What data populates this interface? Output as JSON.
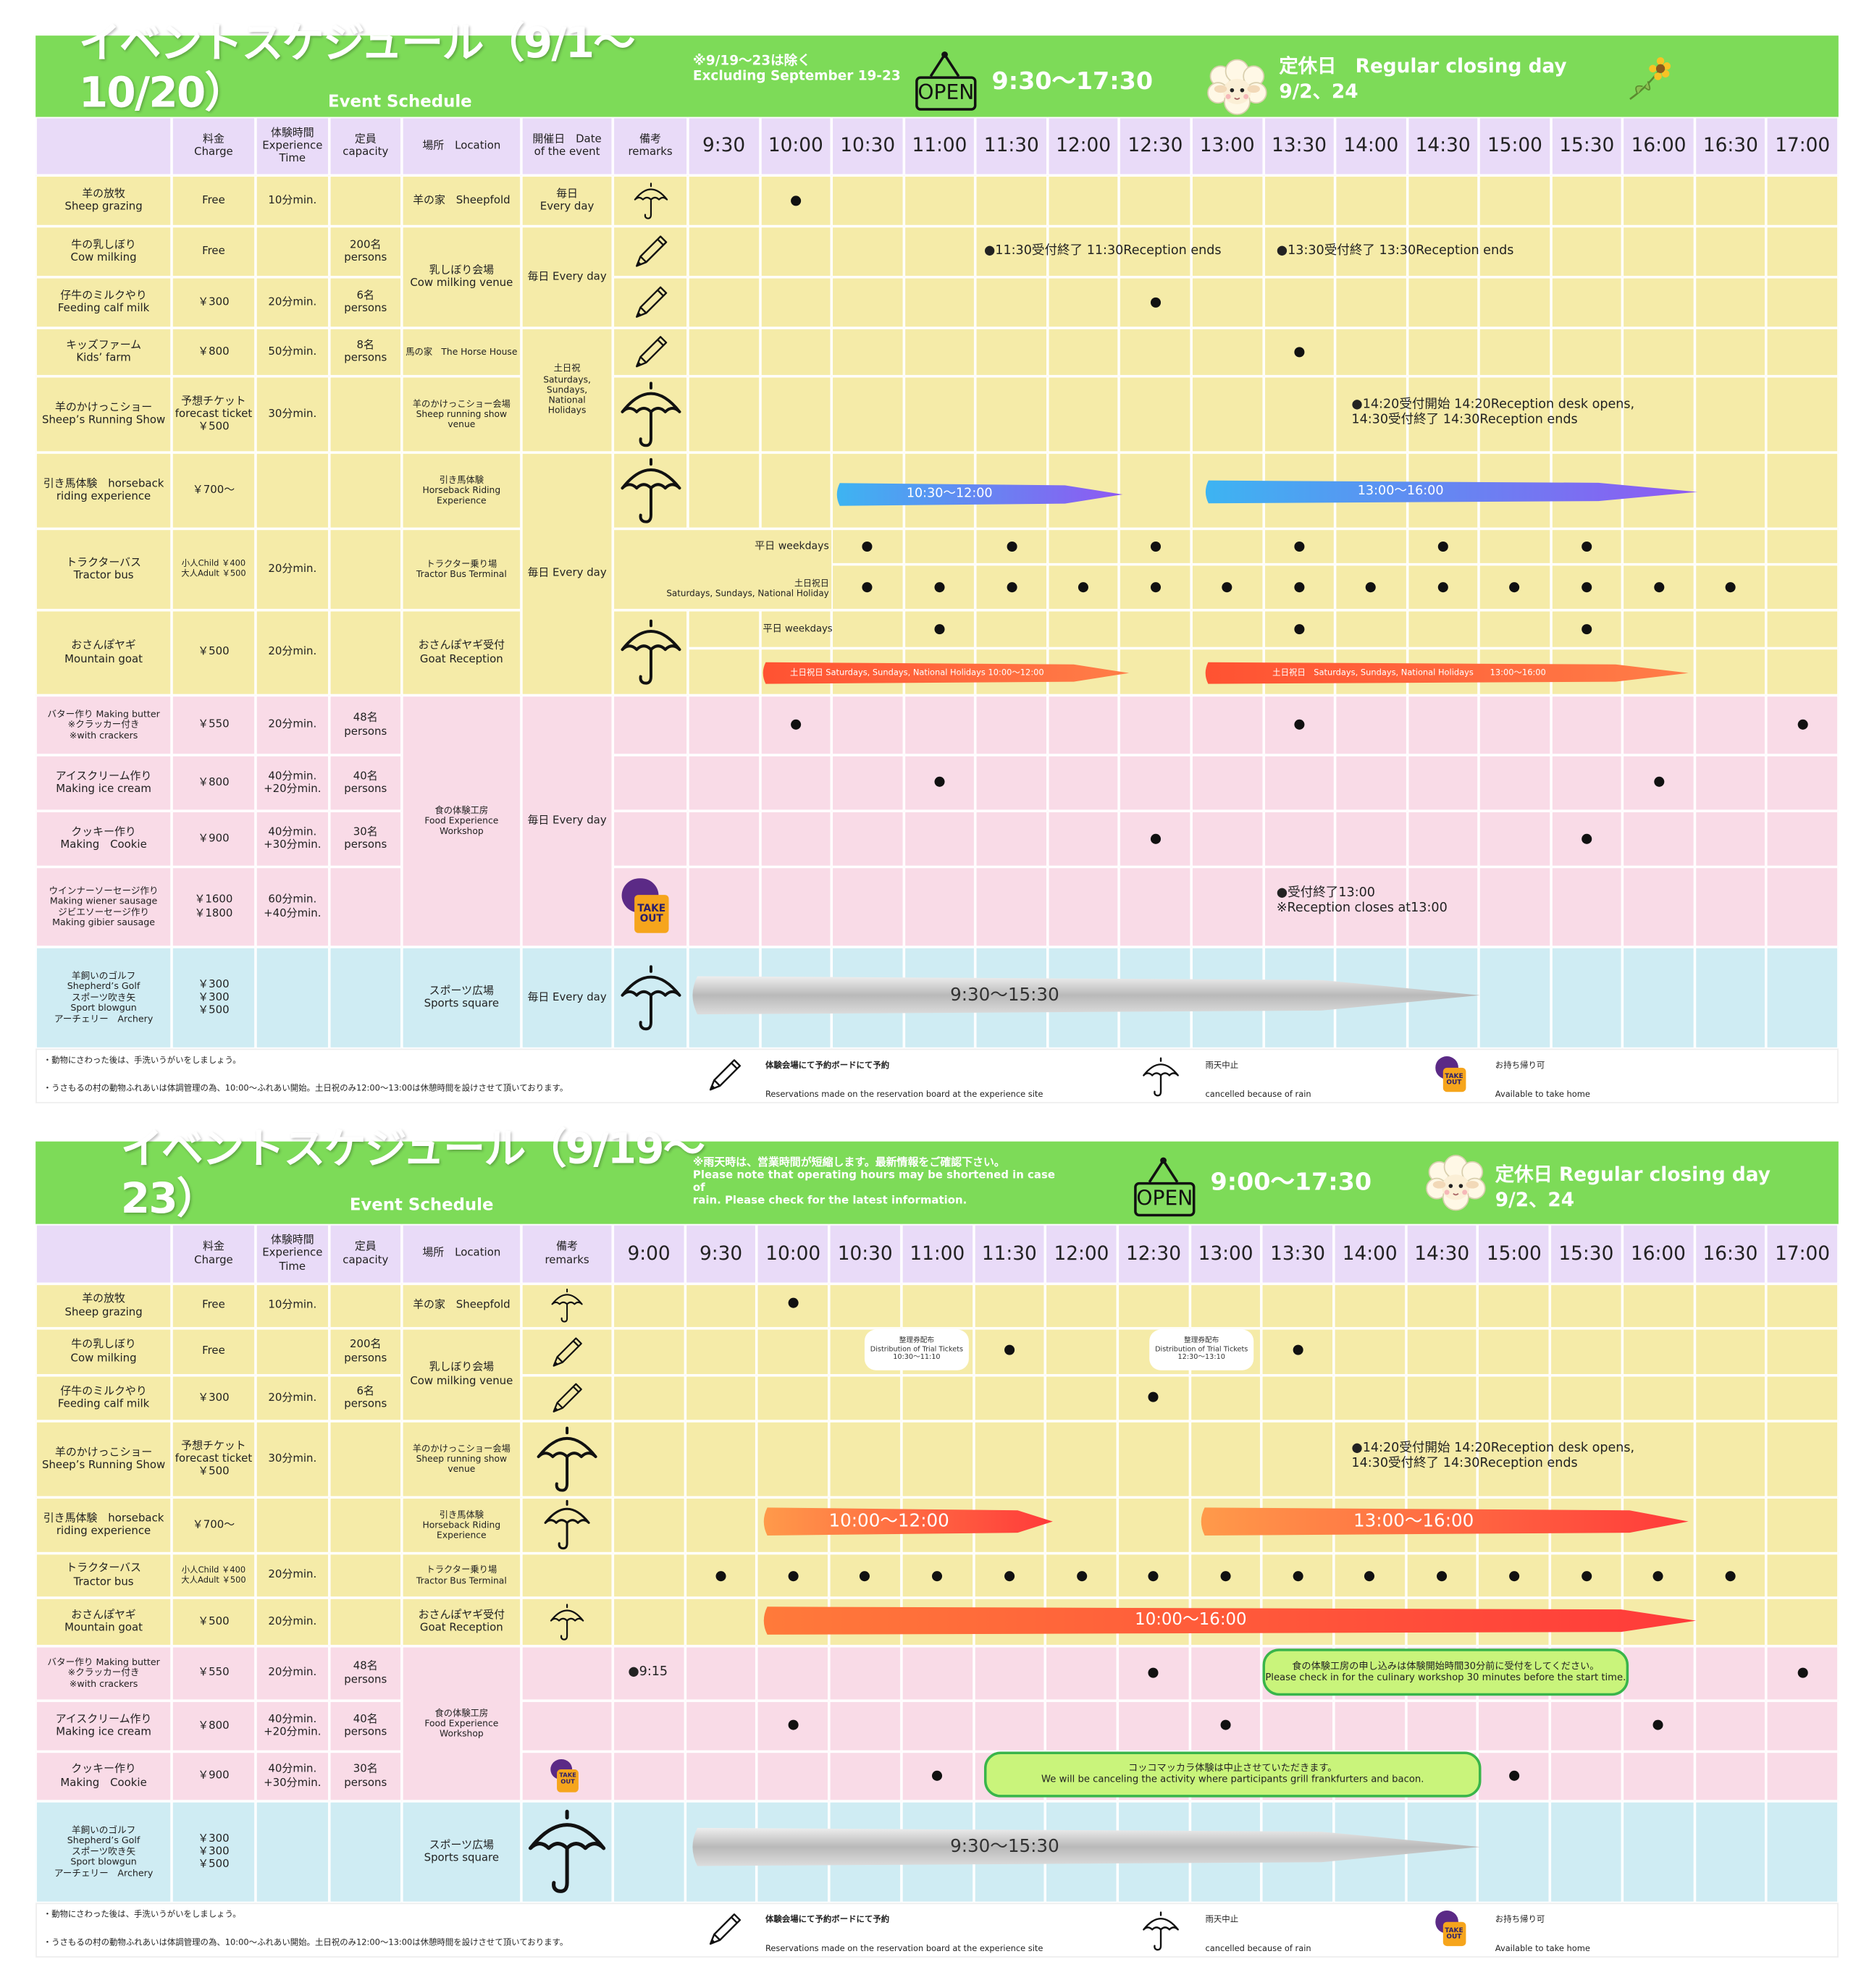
{
  "open_sign": "OPEN",
  "takeout_label": "TAKE\nOUT",
  "schedules": [
    {
      "title": "イベントスケジュール（9/1〜10/20）",
      "subtitle": "Event Schedule",
      "note": "※9/19〜23は除く\nExcluding September 19-23",
      "hours": "9:30〜17:30",
      "closed": "定休日　Regular closing day\n9/2、24",
      "columns": [
        "料金\nCharge",
        "体験時間\nExperience\nTime",
        "定員\ncapacity",
        "場所　Location",
        "開催日　Date\nof the event",
        "備考\nremarks"
      ],
      "times": [
        "9:30",
        "10:00",
        "10:30",
        "11:00",
        "11:30",
        "12:00",
        "12:30",
        "13:00",
        "13:30",
        "14:00",
        "14:30",
        "15:00",
        "15:30",
        "16:00",
        "16:30",
        "17:00"
      ],
      "rows": [
        {
          "activity": "羊の放牧\nSheep grazing",
          "charge": "Free",
          "duration": "10分min."
        },
        {
          "activity": "牛の乳しぼり\nCow milking",
          "charge": "Free",
          "capacity": "200名\npersons"
        },
        {
          "activity": "仔牛のミルクやり\nFeeding calf milk",
          "charge": "￥300",
          "duration": "20分min.",
          "capacity": "6名\npersons"
        },
        {
          "activity": "キッズファーム\nKids’ farm",
          "charge": "￥800",
          "duration": "50分min.",
          "capacity": "8名\npersons"
        },
        {
          "activity": "羊のかけっこショー\nSheep’s Running Show",
          "charge": "予想チケット\nforecast ticket\n￥500",
          "duration": "30分min."
        },
        {
          "activity": "引き馬体験　horseback\nriding experience",
          "charge": "￥700〜"
        },
        {
          "activity": "トラクターバス\nTractor bus",
          "charge": "小人Child ￥400\n大人Adult ￥500",
          "duration": "20分min."
        },
        {
          "activity": "おさんぽヤギ\nMountain goat",
          "charge": "￥500",
          "duration": "20分min."
        },
        {
          "activity": "バター作り Making butter\n※クラッカー付き\n※with crackers",
          "charge": "￥550",
          "duration": "20分min.",
          "capacity": "48名\npersons"
        },
        {
          "activity": "アイスクリーム作り\nMaking ice cream",
          "charge": "￥800",
          "duration": "40分min.\n+20分min.",
          "capacity": "40名\npersons"
        },
        {
          "activity": "クッキー作り\nMaking　Cookie",
          "charge": "￥900",
          "duration": "40分min.\n+30分min.",
          "capacity": "30名\npersons"
        },
        {
          "activity": "ウインナーソーセージ作り\nMaking wiener sausage\nジビエソーセージ作り\nMaking gibier sausage",
          "charge": "￥1600\n￥1800",
          "duration": "60分min.\n+40分min."
        },
        {
          "activity": "羊飼いのゴルフ\nShepherd’s Golf\nスポーツ吹き矢\nSport blowgun\nアーチェリー　Archery",
          "charge": "￥300\n￥300\n￥500"
        }
      ],
      "locations": [
        "羊の家　Sheepfold",
        "乳しぼり会場\nCow milking venue",
        "馬の家　The Horse House",
        "羊のかけっこショー会場\nSheep running show\nvenue",
        "引き馬体験\nHorseback Riding\nExperience",
        "トラクター乗り場\nTractor Bus Terminal",
        "おさんぽヤギ受付\nGoat Reception",
        "食の体験工房\nFood Experience\nWorkshop",
        "スポーツ広場\nSports square"
      ],
      "dates": [
        "毎日\nEvery day",
        "毎日 Every day",
        "土日祝\nSaturdays,\nSundays,\nNational\nHolidays",
        "毎日 Every day",
        "毎日 Every day",
        "毎日 Every day"
      ],
      "annotations": [
        "●11:30受付終了 11:30Reception ends",
        "●13:30受付終了 13:30Reception ends",
        "●14:20受付開始  14:20Reception desk opens,\n14:30受付終了 14:30Reception ends",
        "平日 weekdays",
        "土日祝日\nSaturdays, Sundays, National Holiday",
        "平日 weekdays",
        "●受付終了13:00\n※Reception closes at13:00"
      ],
      "arrows": [
        "10:30〜12:00",
        "13:00〜16:00",
        "土日祝日 Saturdays, Sundays, National Holidays 10:00〜12:00",
        "土日祝日　Saturdays, Sundays, National Holidays　　13:00〜16:00",
        "9:30〜15:30"
      ],
      "footer": {
        "notes": [
          "・動物にさわった後は、手洗いうがいをしましょう。",
          "・うさもるの村の動物ふれあいは体調管理の為、10:00〜ふれあい開始。土日祝のみ12:00〜13:00は休憩時間を設けさせて頂いております。"
        ],
        "legend": [
          [
            "体験会場にて予約ボードにて予約",
            "Reservations made on the reservation board at the experience site"
          ],
          [
            "雨天中止",
            "cancelled because of rain"
          ],
          [
            "お持ち帰り可",
            "Available to take home"
          ]
        ]
      }
    },
    {
      "title": "イベントスケジュール（9/19〜23）",
      "subtitle": "Event Schedule",
      "note": "※雨天時は、営業時間が短縮します。最新情報をご確認下さい。\nPlease note that operating hours may be shortened in case of\nrain. Please check for the latest information.",
      "hours": "9:00〜17:30",
      "closed": "定休日 Regular closing day\n9/2、24",
      "columns": [
        "料金\nCharge",
        "体験時間\nExperience\nTime",
        "定員\ncapacity",
        "場所　Location",
        "備考\nremarks"
      ],
      "times": [
        "9:00",
        "9:30",
        "10:00",
        "10:30",
        "11:00",
        "11:30",
        "12:00",
        "12:30",
        "13:00",
        "13:30",
        "14:00",
        "14:30",
        "15:00",
        "15:30",
        "16:00",
        "16:30",
        "17:00"
      ],
      "rows": [
        {
          "activity": "羊の放牧\nSheep grazing",
          "charge": "Free",
          "duration": "10分min."
        },
        {
          "activity": "牛の乳しぼり\nCow milking",
          "charge": "Free",
          "capacity": "200名\npersons"
        },
        {
          "activity": "仔牛のミルクやり\nFeeding calf milk",
          "charge": "￥300",
          "duration": "20分min.",
          "capacity": "6名\npersons"
        },
        {
          "activity": "羊のかけっこショー\nSheep’s Running Show",
          "charge": "予想チケット\nforecast ticket\n￥500",
          "duration": "30分min."
        },
        {
          "activity": "引き馬体験　horseback\nriding experience",
          "charge": "￥700〜"
        },
        {
          "activity": "トラクターバス\nTractor bus",
          "charge": "小人Child ￥400\n大人Adult ￥500",
          "duration": "20分min."
        },
        {
          "activity": "おさんぽヤギ\nMountain goat",
          "charge": "￥500",
          "duration": "20分min."
        },
        {
          "activity": "バター作り Making butter\n※クラッカー付き\n※with crackers",
          "charge": "￥550",
          "duration": "20分min.",
          "capacity": "48名\npersons"
        },
        {
          "activity": "アイスクリーム作り\nMaking ice cream",
          "charge": "￥800",
          "duration": "40分min.\n+20分min.",
          "capacity": "40名\npersons"
        },
        {
          "activity": "クッキー作り\nMaking　Cookie",
          "charge": "￥900",
          "duration": "40分min.\n+30分min.",
          "capacity": "30名\npersons"
        },
        {
          "activity": "羊飼いのゴルフ\nShepherd’s Golf\nスポーツ吹き矢\nSport blowgun\nアーチェリー　Archery",
          "charge": "￥300\n￥300\n￥500"
        }
      ],
      "locations": [
        "羊の家　Sheepfold",
        "乳しぼり会場\nCow milking venue",
        "羊のかけっこショー会場\nSheep running show\nvenue",
        "引き馬体験\nHorseback Riding\nExperience",
        "トラクター乗り場\nTractor Bus Terminal",
        "おさんぽヤギ受付\nGoat Reception",
        "食の体験工房\nFood Experience\nWorkshop",
        "スポーツ広場\nSports square"
      ],
      "annotations": [
        "整理券配布\nDistribution of Trial Tickets\n10:30〜11:10",
        "整理券配布\nDistribution of Trial Tickets\n12:30〜13:10",
        "●14:20受付開始  14:20Reception desk opens,\n14:30受付終了 14:30Reception ends",
        "●9:15",
        "食の体験工房の申し込みは体験開始時間30分前に受付をしてください。\nPlease check in for the culinary workshop 30 minutes before the start time.",
        "コッコマッカラ体験は中止させていただきます。\nWe will be canceling the activity where participants grill frankfurters and bacon."
      ],
      "arrows": [
        "10:00〜12:00",
        "13:00〜16:00",
        "10:00〜16:00",
        "9:30〜15:30"
      ],
      "footer": {
        "notes": [
          "・動物にさわった後は、手洗いうがいをしましょう。",
          "・うさもるの村の動物ふれあいは体調管理の為、10:00〜ふれあい開始。土日祝のみ12:00〜13:00は休憩時間を設けさせて頂いております。"
        ],
        "legend": [
          [
            "体験会場にて予約ボードにて予約",
            "Reservations made on the reservation board at the experience site"
          ],
          [
            "雨天中止",
            "cancelled because of rain"
          ],
          [
            "お持ち帰り可",
            "Available to take home"
          ]
        ]
      }
    }
  ]
}
